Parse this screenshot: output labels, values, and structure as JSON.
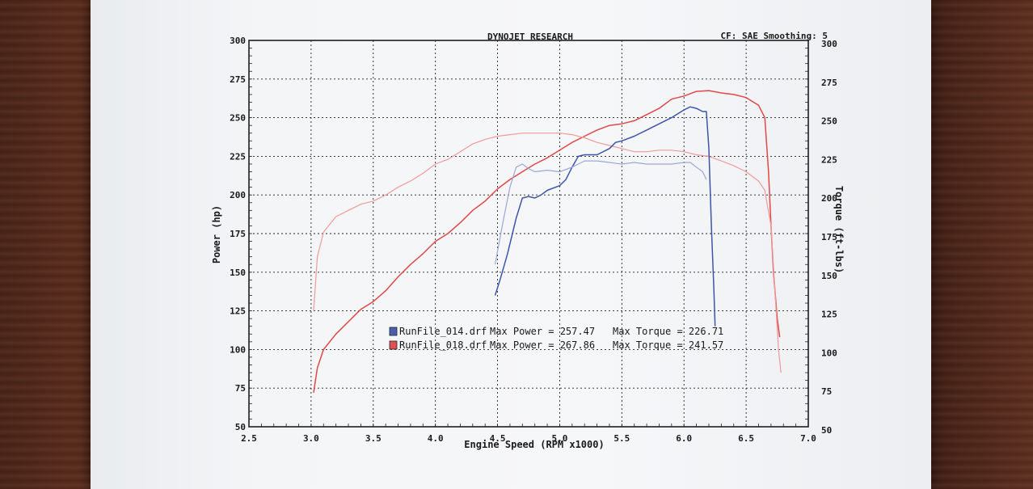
{
  "chart_data": {
    "type": "line",
    "title": "DYNOJET RESEARCH",
    "header_right": "CF: SAE  Smoothing: 5",
    "xlabel": "Engine Speed (RPM x1000)",
    "ylabel_left": "Power (hp)",
    "ylabel_right": "Torque (ft-lbs)",
    "xlim": [
      2.5,
      7.0
    ],
    "ylim": [
      50,
      300
    ],
    "x_ticks": [
      "2.5",
      "3.0",
      "3.5",
      "4.0",
      "4.5",
      "5.0",
      "5.5",
      "6.0",
      "6.5",
      "7.0"
    ],
    "y_ticks": [
      "50",
      "75",
      "100",
      "125",
      "150",
      "175",
      "200",
      "225",
      "250",
      "275",
      "300"
    ],
    "grid": true,
    "legend": [
      {
        "file": "RunFile_014.drf",
        "power_text": "Max Power = 257.47",
        "torque_text": "Max Torque = 226.71",
        "color": "#4a5fb0"
      },
      {
        "file": "RunFile_018.drf",
        "power_text": "Max Power = 267.86",
        "torque_text": "Max Torque = 241.57",
        "color": "#e05050"
      }
    ],
    "series": [
      {
        "name": "RunFile_018.drf Power",
        "color": "#e04848",
        "width": 1.5,
        "points": [
          [
            3.02,
            72
          ],
          [
            3.05,
            88
          ],
          [
            3.1,
            100
          ],
          [
            3.2,
            110
          ],
          [
            3.3,
            118
          ],
          [
            3.4,
            126
          ],
          [
            3.5,
            131
          ],
          [
            3.6,
            138
          ],
          [
            3.7,
            147
          ],
          [
            3.8,
            155
          ],
          [
            3.9,
            162
          ],
          [
            4.0,
            170
          ],
          [
            4.1,
            175
          ],
          [
            4.2,
            182
          ],
          [
            4.3,
            190
          ],
          [
            4.4,
            196
          ],
          [
            4.5,
            204
          ],
          [
            4.6,
            210
          ],
          [
            4.7,
            215
          ],
          [
            4.8,
            220
          ],
          [
            4.9,
            224
          ],
          [
            5.0,
            229
          ],
          [
            5.1,
            234
          ],
          [
            5.2,
            238
          ],
          [
            5.3,
            242
          ],
          [
            5.4,
            245
          ],
          [
            5.5,
            246
          ],
          [
            5.6,
            248
          ],
          [
            5.7,
            252
          ],
          [
            5.8,
            256
          ],
          [
            5.9,
            262
          ],
          [
            6.0,
            264
          ],
          [
            6.1,
            267
          ],
          [
            6.2,
            267.5
          ],
          [
            6.3,
            266
          ],
          [
            6.4,
            265
          ],
          [
            6.5,
            263
          ],
          [
            6.6,
            258
          ],
          [
            6.65,
            250
          ],
          [
            6.68,
            215
          ],
          [
            6.7,
            180
          ],
          [
            6.72,
            150
          ],
          [
            6.75,
            120
          ],
          [
            6.77,
            108
          ]
        ]
      },
      {
        "name": "RunFile_018.drf Torque",
        "color": "#f09a9a",
        "width": 1.2,
        "points": [
          [
            3.02,
            125
          ],
          [
            3.05,
            160
          ],
          [
            3.1,
            176
          ],
          [
            3.2,
            186
          ],
          [
            3.3,
            190
          ],
          [
            3.4,
            194
          ],
          [
            3.5,
            196
          ],
          [
            3.6,
            200
          ],
          [
            3.7,
            205
          ],
          [
            3.8,
            209
          ],
          [
            3.9,
            214
          ],
          [
            4.0,
            220
          ],
          [
            4.1,
            223
          ],
          [
            4.2,
            228
          ],
          [
            4.3,
            233
          ],
          [
            4.4,
            236
          ],
          [
            4.5,
            238
          ],
          [
            4.6,
            239
          ],
          [
            4.7,
            240
          ],
          [
            4.8,
            240
          ],
          [
            4.9,
            240
          ],
          [
            5.0,
            240
          ],
          [
            5.1,
            239
          ],
          [
            5.2,
            237
          ],
          [
            5.3,
            234
          ],
          [
            5.4,
            232
          ],
          [
            5.5,
            230
          ],
          [
            5.6,
            228
          ],
          [
            5.7,
            228
          ],
          [
            5.8,
            229
          ],
          [
            5.9,
            229
          ],
          [
            6.0,
            228
          ],
          [
            6.1,
            226
          ],
          [
            6.2,
            225
          ],
          [
            6.3,
            222
          ],
          [
            6.4,
            219
          ],
          [
            6.5,
            215
          ],
          [
            6.6,
            209
          ],
          [
            6.65,
            203
          ],
          [
            6.7,
            180
          ],
          [
            6.73,
            140
          ],
          [
            6.76,
            100
          ],
          [
            6.78,
            85
          ]
        ]
      },
      {
        "name": "RunFile_014.drf Power",
        "color": "#3d55a8",
        "width": 1.5,
        "points": [
          [
            4.48,
            135
          ],
          [
            4.52,
            145
          ],
          [
            4.58,
            162
          ],
          [
            4.65,
            185
          ],
          [
            4.7,
            198
          ],
          [
            4.75,
            199
          ],
          [
            4.8,
            198
          ],
          [
            4.85,
            200
          ],
          [
            4.9,
            203
          ],
          [
            5.0,
            206
          ],
          [
            5.05,
            210
          ],
          [
            5.1,
            218
          ],
          [
            5.15,
            225
          ],
          [
            5.2,
            226
          ],
          [
            5.3,
            226
          ],
          [
            5.4,
            230
          ],
          [
            5.45,
            234
          ],
          [
            5.5,
            235
          ],
          [
            5.6,
            238
          ],
          [
            5.7,
            242
          ],
          [
            5.8,
            246
          ],
          [
            5.9,
            250
          ],
          [
            6.0,
            255
          ],
          [
            6.05,
            257
          ],
          [
            6.1,
            256
          ],
          [
            6.15,
            254
          ],
          [
            6.18,
            254
          ],
          [
            6.2,
            230
          ],
          [
            6.22,
            180
          ],
          [
            6.24,
            140
          ],
          [
            6.25,
            115
          ]
        ]
      },
      {
        "name": "RunFile_014.drf Torque",
        "color": "#9aa8d8",
        "width": 1.2,
        "points": [
          [
            4.48,
            155
          ],
          [
            4.55,
            185
          ],
          [
            4.6,
            205
          ],
          [
            4.65,
            218
          ],
          [
            4.7,
            220
          ],
          [
            4.75,
            217
          ],
          [
            4.8,
            215
          ],
          [
            4.9,
            216
          ],
          [
            5.0,
            215
          ],
          [
            5.1,
            218
          ],
          [
            5.2,
            222
          ],
          [
            5.3,
            222
          ],
          [
            5.4,
            221
          ],
          [
            5.5,
            220
          ],
          [
            5.6,
            221
          ],
          [
            5.7,
            220
          ],
          [
            5.8,
            220
          ],
          [
            5.9,
            220
          ],
          [
            6.0,
            221
          ],
          [
            6.05,
            221
          ],
          [
            6.1,
            218
          ],
          [
            6.15,
            215
          ],
          [
            6.18,
            210
          ]
        ]
      }
    ]
  }
}
